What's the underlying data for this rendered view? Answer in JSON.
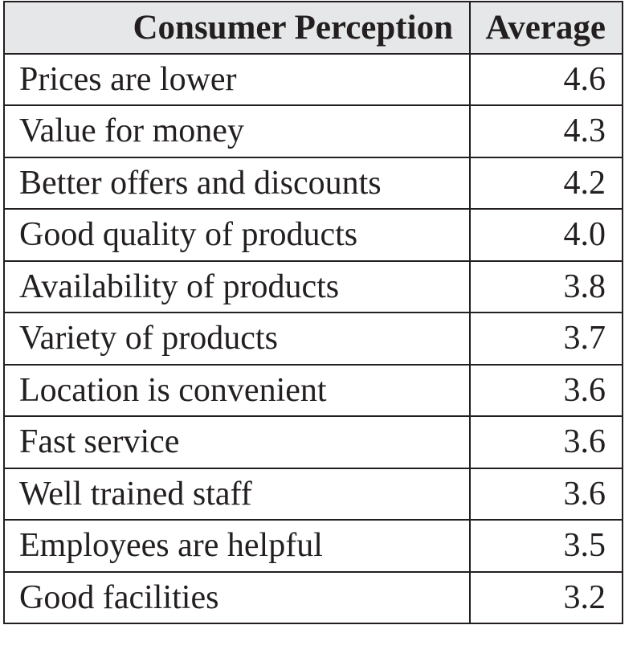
{
  "table": {
    "headers": [
      "Consumer Perception",
      "Average"
    ],
    "rows": [
      [
        "Prices are lower",
        "4.6"
      ],
      [
        "Value for money",
        "4.3"
      ],
      [
        "Better offers and discounts",
        "4.2"
      ],
      [
        "Good quality of products",
        "4.0"
      ],
      [
        "Availability of products",
        "3.8"
      ],
      [
        "Variety of products",
        "3.7"
      ],
      [
        "Location is convenient",
        "3.6"
      ],
      [
        "Fast service",
        "3.6"
      ],
      [
        "Well trained staff",
        "3.6"
      ],
      [
        "Employees are helpful",
        "3.5"
      ],
      [
        "Good facilities",
        "3.2"
      ]
    ]
  },
  "colors": {
    "header_background": "#e6e7e8",
    "border": "#231f20",
    "text": "#231f20"
  }
}
